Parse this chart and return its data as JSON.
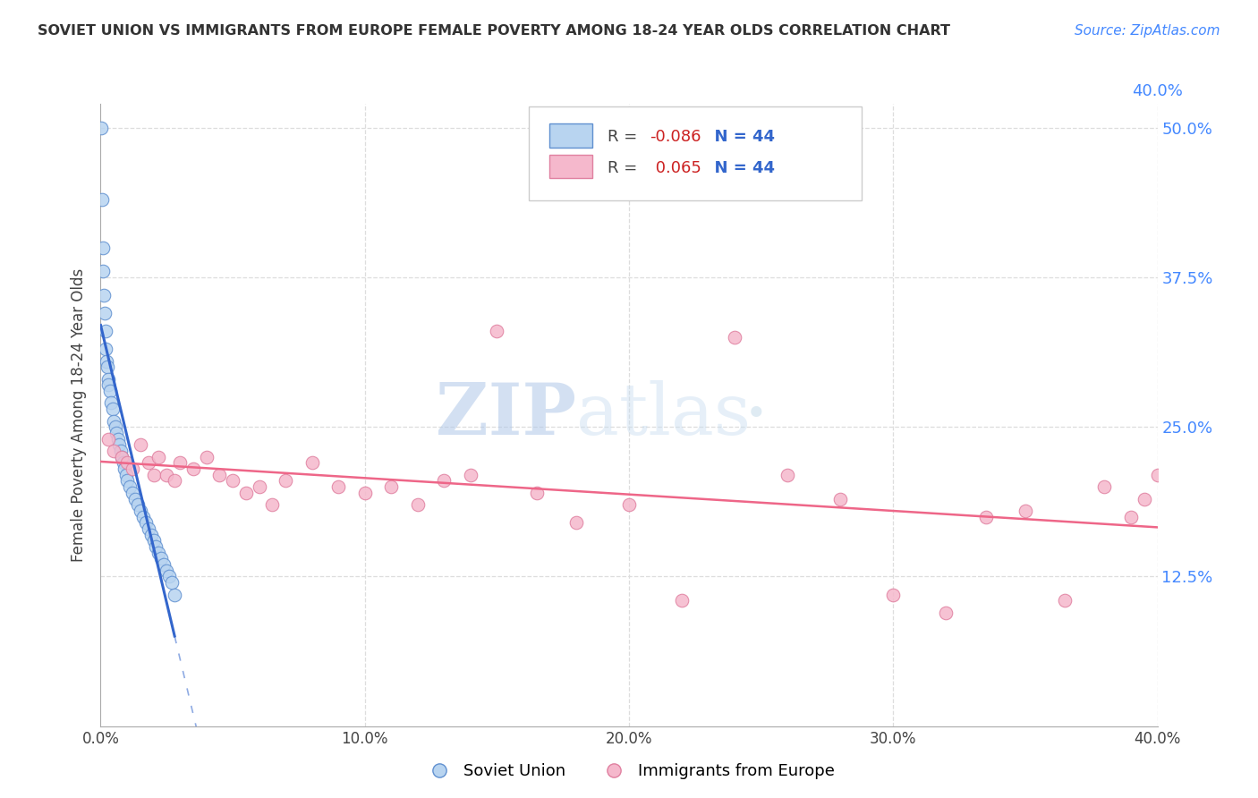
{
  "title": "SOVIET UNION VS IMMIGRANTS FROM EUROPE FEMALE POVERTY AMONG 18-24 YEAR OLDS CORRELATION CHART",
  "source": "Source: ZipAtlas.com",
  "ylabel": "Female Poverty Among 18-24 Year Olds",
  "x_tick_values": [
    0.0,
    10.0,
    20.0,
    30.0,
    40.0
  ],
  "y_tick_values": [
    12.5,
    25.0,
    37.5,
    50.0
  ],
  "xlim": [
    0.0,
    40.0
  ],
  "ylim": [
    0.0,
    52.0
  ],
  "legend_R_blue": "-0.086",
  "legend_R_pink": "0.065",
  "legend_N": "44",
  "blue_fill": "#b8d4f0",
  "blue_edge": "#6090d0",
  "pink_fill": "#f5b8cc",
  "pink_edge": "#e080a0",
  "blue_line_color": "#3366cc",
  "pink_line_color": "#ee6688",
  "watermark_zip": "ZIP",
  "watermark_atlas": "atlas",
  "watermark_color": "#ccddf0",
  "grid_color": "#dddddd",
  "right_axis_color": "#4488ff",
  "title_color": "#333333",
  "source_color": "#4488ff",
  "soviet_union_x": [
    0.02,
    0.05,
    0.08,
    0.1,
    0.12,
    0.15,
    0.18,
    0.2,
    0.22,
    0.25,
    0.28,
    0.3,
    0.35,
    0.4,
    0.45,
    0.5,
    0.55,
    0.6,
    0.65,
    0.7,
    0.75,
    0.8,
    0.85,
    0.9,
    0.95,
    1.0,
    1.1,
    1.2,
    1.3,
    1.4,
    1.5,
    1.6,
    1.7,
    1.8,
    1.9,
    2.0,
    2.1,
    2.2,
    2.3,
    2.4,
    2.5,
    2.6,
    2.7,
    2.8
  ],
  "soviet_union_y": [
    50.0,
    44.0,
    40.0,
    38.0,
    36.0,
    34.5,
    33.0,
    31.5,
    30.5,
    30.0,
    29.0,
    28.5,
    28.0,
    27.0,
    26.5,
    25.5,
    25.0,
    24.5,
    24.0,
    23.5,
    23.0,
    22.5,
    22.0,
    21.5,
    21.0,
    20.5,
    20.0,
    19.5,
    19.0,
    18.5,
    18.0,
    17.5,
    17.0,
    16.5,
    16.0,
    15.5,
    15.0,
    14.5,
    14.0,
    13.5,
    13.0,
    12.5,
    12.0,
    11.0
  ],
  "europe_x": [
    0.3,
    0.5,
    0.8,
    1.0,
    1.2,
    1.5,
    1.8,
    2.0,
    2.2,
    2.5,
    2.8,
    3.0,
    3.5,
    4.0,
    4.5,
    5.0,
    5.5,
    6.0,
    6.5,
    7.0,
    8.0,
    9.0,
    10.0,
    11.0,
    12.0,
    13.0,
    14.0,
    15.0,
    16.5,
    18.0,
    20.0,
    22.0,
    24.0,
    26.0,
    28.0,
    30.0,
    32.0,
    33.5,
    35.0,
    36.5,
    38.0,
    39.0,
    39.5,
    40.0
  ],
  "europe_y": [
    24.0,
    23.0,
    22.5,
    22.0,
    21.5,
    23.5,
    22.0,
    21.0,
    22.5,
    21.0,
    20.5,
    22.0,
    21.5,
    22.5,
    21.0,
    20.5,
    19.5,
    20.0,
    18.5,
    20.5,
    22.0,
    20.0,
    19.5,
    20.0,
    18.5,
    20.5,
    21.0,
    33.0,
    19.5,
    17.0,
    18.5,
    10.5,
    32.5,
    21.0,
    19.0,
    11.0,
    9.5,
    17.5,
    18.0,
    10.5,
    20.0,
    17.5,
    19.0,
    21.0
  ]
}
